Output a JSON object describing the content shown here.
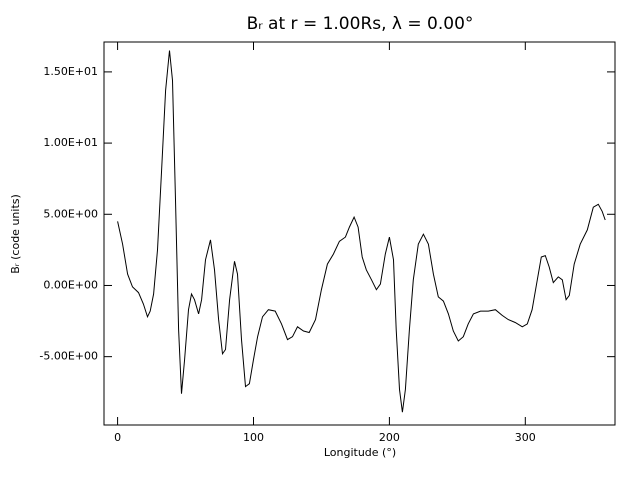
{
  "chart_data": {
    "type": "line",
    "title": "Bᵣ at r = 1.00Rs, λ = 0.00°",
    "x_label": "Longitude (°)",
    "y_label": "Bᵣ (code units)",
    "xlim": [
      -10,
      366
    ],
    "ylim": [
      -9.8,
      17.1
    ],
    "xticks": [
      0,
      100,
      200,
      300
    ],
    "yticks": [
      {
        "value": -5,
        "label": "-5.00E+00"
      },
      {
        "value": 0,
        "label": "0.00E+00"
      },
      {
        "value": 5,
        "label": "5.00E+00"
      },
      {
        "value": 10,
        "label": "1.00E+01"
      },
      {
        "value": 15,
        "label": "1.50E+01"
      }
    ],
    "grid": false,
    "series": [
      {
        "color": "#000000",
        "x": [
          0,
          3.7,
          7.4,
          11,
          15.4,
          19,
          22,
          24,
          26.5,
          29.4,
          32.4,
          35.3,
          38.2,
          40.4,
          42.6,
          44.9,
          47,
          49.3,
          52.2,
          54.4,
          56.6,
          59.6,
          61.8,
          64.7,
          68.4,
          71.3,
          74.3,
          77.2,
          79.4,
          82.4,
          86,
          88.2,
          91.2,
          94.1,
          97,
          100,
          103,
          106.6,
          111,
          116,
          120.6,
          125,
          128.7,
          132.4,
          136.8,
          141,
          145.6,
          150,
          154.4,
          158.8,
          163.2,
          167.6,
          170.6,
          174,
          177,
          180,
          183,
          186.8,
          190.4,
          193.4,
          197,
          200,
          203,
          205,
          207.4,
          209.6,
          211.8,
          214.7,
          217.6,
          221.3,
          225,
          228.7,
          232.4,
          236,
          239.7,
          243.4,
          247,
          250.7,
          254.4,
          258,
          261.8,
          267,
          272.8,
          278,
          283,
          287.5,
          292.6,
          297.8,
          301.5,
          305,
          308.8,
          311.8,
          314.7,
          317.6,
          320.6,
          324.3,
          327.2,
          330,
          332.4,
          336,
          340.4,
          345.6,
          350,
          353.7,
          356.6,
          358.8
        ],
        "values": [
          4.5,
          2.9,
          0.8,
          -0.1,
          -0.5,
          -1.3,
          -2.2,
          -1.8,
          -0.6,
          2.5,
          8.1,
          13.7,
          16.5,
          14.4,
          6.0,
          -3.1,
          -7.6,
          -5.2,
          -1.7,
          -0.6,
          -1.0,
          -2.0,
          -1.0,
          1.8,
          3.2,
          1.1,
          -2.4,
          -4.8,
          -4.5,
          -1.0,
          1.7,
          0.8,
          -3.8,
          -7.1,
          -6.9,
          -5.2,
          -3.6,
          -2.2,
          -1.7,
          -1.8,
          -2.7,
          -3.8,
          -3.6,
          -2.9,
          -3.2,
          -3.3,
          -2.4,
          -0.3,
          1.5,
          2.2,
          3.1,
          3.4,
          4.1,
          4.8,
          4.1,
          2.0,
          1.1,
          0.4,
          -0.3,
          0.1,
          2.2,
          3.4,
          1.8,
          -3.1,
          -7.3,
          -8.9,
          -7.3,
          -3.1,
          0.4,
          2.9,
          3.6,
          2.9,
          0.8,
          -0.8,
          -1.1,
          -2.0,
          -3.2,
          -3.9,
          -3.6,
          -2.7,
          -2.0,
          -1.8,
          -1.8,
          -1.7,
          -2.1,
          -2.4,
          -2.6,
          -2.9,
          -2.7,
          -1.7,
          0.4,
          2.0,
          2.1,
          1.3,
          0.2,
          0.6,
          0.4,
          -1.0,
          -0.7,
          1.5,
          2.9,
          3.9,
          5.5,
          5.7,
          5.2,
          4.6
        ]
      }
    ]
  }
}
